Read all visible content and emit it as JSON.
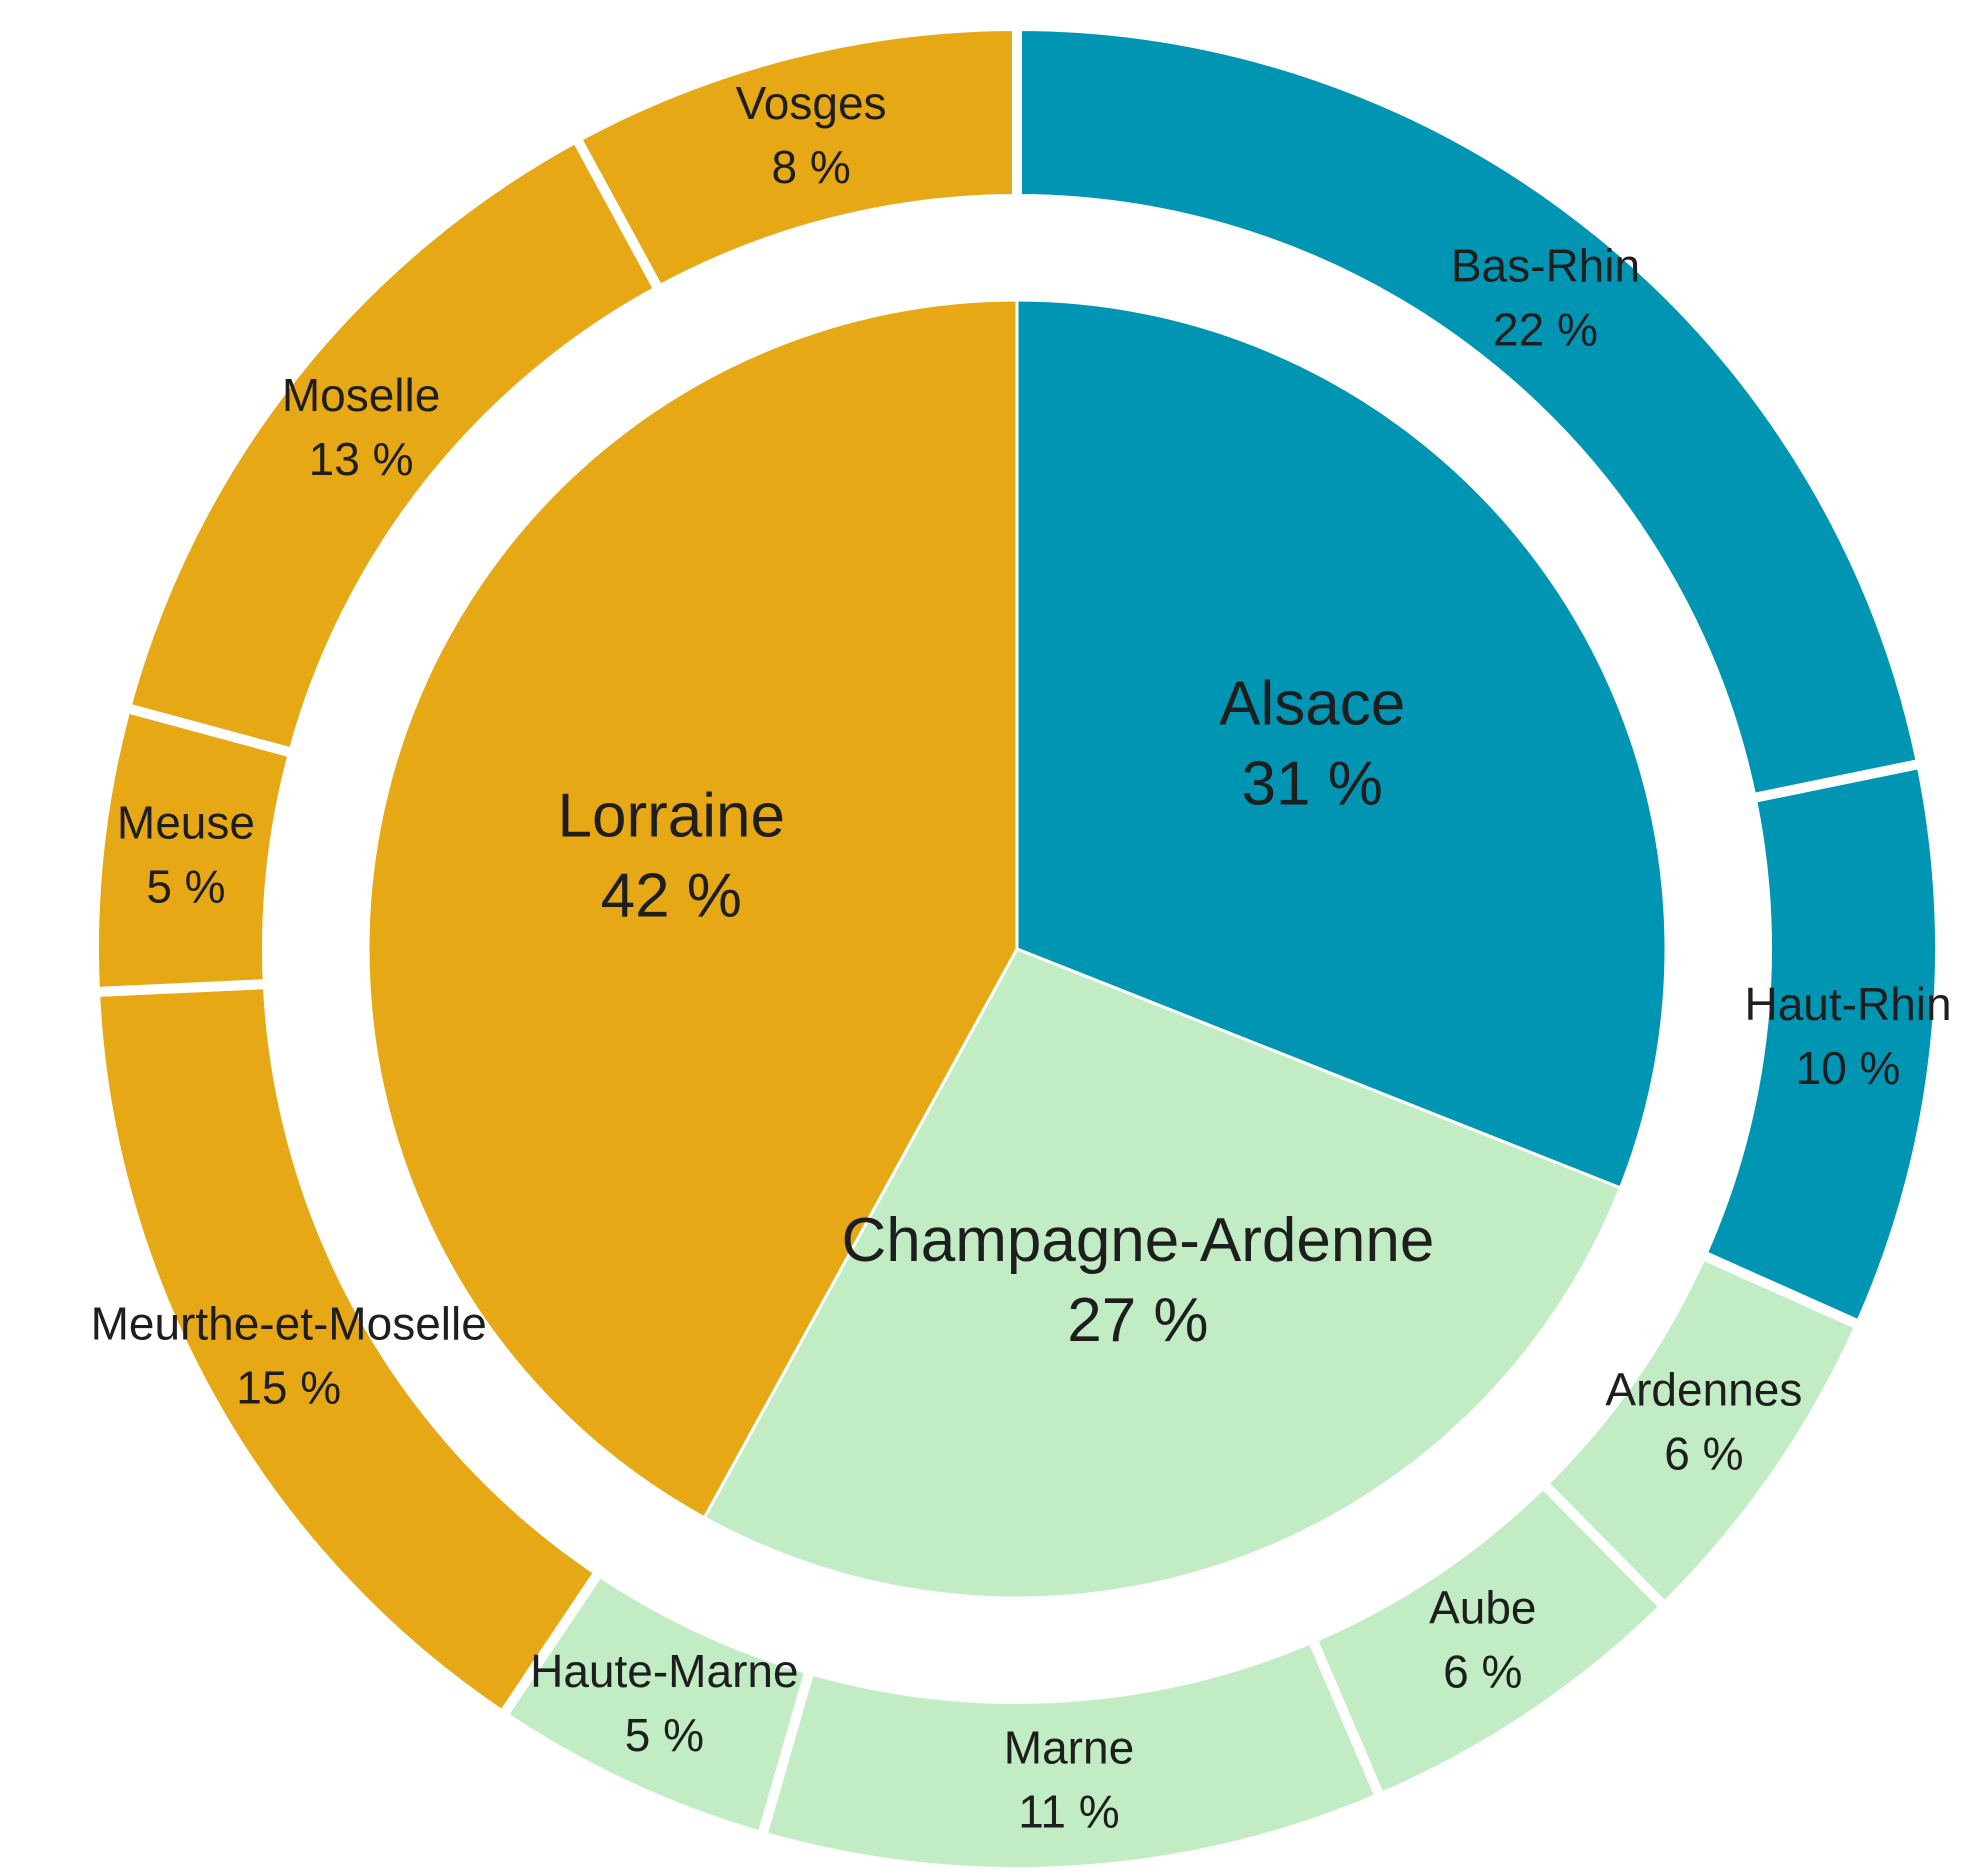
{
  "chart_data": {
    "type": "sunburst",
    "rings": [
      {
        "categories": [
          "Alsace",
          "Champagne-Ardenne",
          "Lorraine"
        ],
        "values": [
          31,
          27,
          42
        ],
        "value_labels": [
          "31 %",
          "27 %",
          "42 %"
        ],
        "colors": [
          "#0095b2",
          "#c2ecc4",
          "#e6a915"
        ]
      },
      {
        "categories": [
          "Bas-Rhin",
          "Haut-Rhin",
          "Ardennes",
          "Aube",
          "Marne",
          "Haute-Marne",
          "Meurthe-et-Moselle",
          "Meuse",
          "Moselle",
          "Vosges"
        ],
        "values": [
          22,
          10,
          6,
          6,
          11,
          5,
          15,
          5,
          13,
          8
        ],
        "value_labels": [
          "22 %",
          "10 %",
          "6 %",
          "6 %",
          "11 %",
          "5 %",
          "15 %",
          "5 %",
          "13 %",
          "8 %"
        ],
        "colors": [
          "#0095b2",
          "#0095b2",
          "#c2ecc4",
          "#c2ecc4",
          "#c2ecc4",
          "#c2ecc4",
          "#e6a915",
          "#e6a915",
          "#e6a915",
          "#e6a915"
        ]
      }
    ]
  }
}
